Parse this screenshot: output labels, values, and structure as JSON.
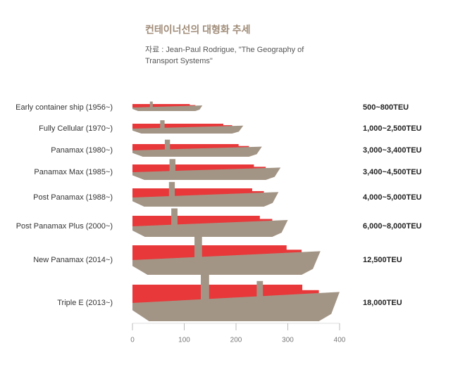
{
  "chart_data": {
    "type": "ship",
    "title": "컨테이너선의 대형화 추세",
    "source": "자료 : Jean-Paul Rodrigue, \"The Geography of Transport Systems\"",
    "categories": [
      "Early container ship (1956~)",
      "Fully Cellular (1970~)",
      "Panamax (1980~)",
      "Panamax Max (1985~)",
      "Post Panamax (1988~)",
      "Post Panamax Plus (2000~)",
      "New Panamax (2014~)",
      "Triple E (2013~)"
    ],
    "capacity_labels": [
      "500~800TEU",
      "1,000~2,500TEU",
      "3,000~3,400TEU",
      "3,400~4,500TEU",
      "4,000~5,000TEU",
      "6,000~8,000TEU",
      "12,500TEU",
      "18,000TEU"
    ],
    "values": [
      135,
      214,
      250,
      286,
      282,
      300,
      363,
      400
    ],
    "xlim": [
      0,
      400
    ],
    "xticks": [
      0,
      100,
      200,
      300,
      400
    ],
    "hull_color": "#a39585",
    "cargo_color": "#e8383a"
  }
}
